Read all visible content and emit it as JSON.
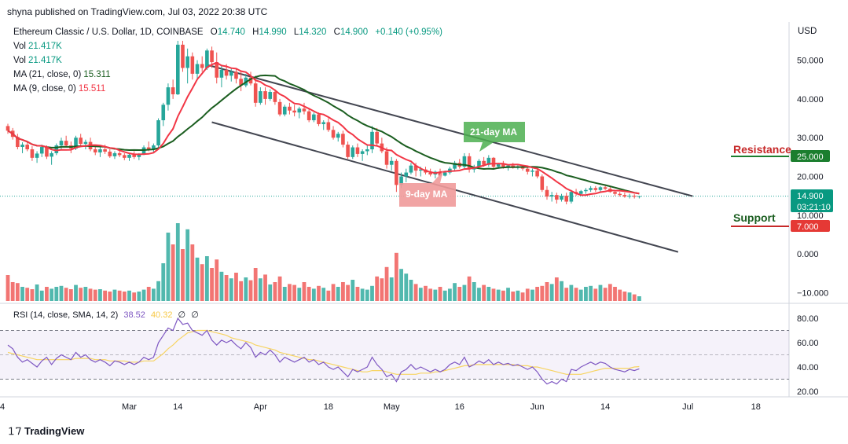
{
  "header": {
    "published": "shyna published on TradingView.com, Jul 03, 2022 20:38 UTC"
  },
  "symbol": {
    "title": "Ethereum Classic / U.S. Dollar, 1D, COINBASE",
    "o_label": "O",
    "o": "14.740",
    "h_label": "H",
    "h": "14.990",
    "l_label": "L",
    "l": "14.320",
    "c_label": "C",
    "c": "14.900",
    "change": "+0.140 (+0.95%)"
  },
  "indicators": [
    {
      "label": "Vol",
      "value": "21.417K"
    },
    {
      "label": "Vol",
      "value": "21.417K"
    },
    {
      "label": "MA (21, close, 0)",
      "value": "15.311"
    },
    {
      "label": "MA (9, close, 0)",
      "value": "15.511"
    }
  ],
  "currency": "USD",
  "annotations": {
    "ma21": "21-day MA",
    "ma9": "9-day MA",
    "resistance": "Resistance",
    "support": "Support",
    "resistance_value": "25.000",
    "support_value": "7.000",
    "price_tag": "14.900",
    "countdown": "03:21:10"
  },
  "rsi": {
    "label": "RSI (14, close, SMA, 14, 2)",
    "value1": "38.52",
    "value2": "40.32",
    "value3": "∅",
    "value4": "∅"
  },
  "brand": "TradingView",
  "colors": {
    "up": "#26a69a",
    "down": "#ef5350",
    "ma9": "#f23645",
    "ma21": "#1b5e20",
    "rsi": "#7e57c2",
    "rsi_sma": "#f7d461",
    "volume_up": "#26a69a",
    "volume_down": "#ef5350"
  },
  "chart_data": {
    "type": "candlestick",
    "price_ticks": [
      "50.000",
      "40.000",
      "30.000",
      "20.000",
      "10.000",
      "0.000",
      "−10.000"
    ],
    "price_tick_values": [
      50,
      40,
      30,
      20,
      10,
      0,
      -10
    ],
    "rsi_ticks": [
      "80.00",
      "60.00",
      "40.00",
      "20.00"
    ],
    "rsi_tick_values": [
      80,
      60,
      40,
      20
    ],
    "rsi_band": [
      30,
      70
    ],
    "x_ticks": [
      "4",
      "Mar",
      "14",
      "Apr",
      "18",
      "May",
      "16",
      "Jun",
      "14",
      "Jul",
      "18"
    ],
    "x_tick_days": [
      0,
      25,
      35,
      52,
      66,
      79,
      93,
      109,
      123,
      140,
      154
    ],
    "ohlc": [
      [
        33.0,
        33.6,
        31.0,
        31.8
      ],
      [
        31.8,
        32.5,
        29.5,
        30.2
      ],
      [
        30.2,
        31.0,
        27.0,
        27.6
      ],
      [
        27.6,
        28.8,
        26.0,
        28.2
      ],
      [
        28.2,
        29.0,
        26.5,
        27.0
      ],
      [
        27.0,
        27.8,
        24.0,
        24.8
      ],
      [
        24.8,
        26.5,
        23.5,
        25.9
      ],
      [
        25.9,
        28.2,
        25.0,
        27.6
      ],
      [
        27.6,
        28.0,
        24.5,
        25.1
      ],
      [
        25.1,
        26.5,
        23.0,
        26.0
      ],
      [
        26.0,
        28.5,
        25.5,
        28.0
      ],
      [
        28.0,
        30.0,
        27.0,
        29.2
      ],
      [
        29.2,
        30.5,
        27.5,
        28.0
      ],
      [
        28.0,
        29.0,
        26.0,
        27.2
      ],
      [
        27.2,
        30.5,
        26.8,
        30.0
      ],
      [
        30.0,
        31.0,
        27.8,
        28.4
      ],
      [
        28.4,
        29.5,
        27.0,
        28.9
      ],
      [
        28.9,
        30.0,
        26.5,
        27.0
      ],
      [
        27.0,
        28.0,
        25.5,
        26.2
      ],
      [
        26.2,
        27.5,
        25.0,
        27.0
      ],
      [
        27.0,
        28.2,
        25.8,
        26.4
      ],
      [
        26.4,
        27.0,
        24.8,
        25.2
      ],
      [
        25.2,
        26.5,
        24.5,
        26.0
      ],
      [
        26.0,
        27.2,
        25.0,
        25.5
      ],
      [
        25.5,
        26.0,
        24.2,
        24.8
      ],
      [
        24.8,
        26.0,
        24.0,
        25.6
      ],
      [
        25.6,
        26.5,
        24.5,
        25.0
      ],
      [
        25.0,
        26.0,
        24.2,
        25.8
      ],
      [
        25.8,
        28.0,
        25.5,
        27.5
      ],
      [
        27.5,
        29.0,
        26.5,
        27.0
      ],
      [
        27.0,
        28.5,
        26.0,
        28.0
      ],
      [
        28.0,
        35.0,
        27.5,
        34.5
      ],
      [
        34.5,
        39.0,
        33.0,
        38.5
      ],
      [
        38.5,
        44.0,
        37.0,
        43.0
      ],
      [
        43.0,
        45.0,
        40.0,
        41.2
      ],
      [
        41.2,
        55.0,
        41.0,
        54.0
      ],
      [
        54.0,
        55.0,
        47.0,
        48.0
      ],
      [
        48.0,
        53.0,
        44.0,
        51.0
      ],
      [
        51.0,
        52.0,
        45.0,
        46.5
      ],
      [
        46.5,
        50.0,
        45.0,
        49.0
      ],
      [
        49.0,
        51.0,
        47.0,
        48.0
      ],
      [
        48.0,
        53.0,
        47.5,
        52.5
      ],
      [
        52.5,
        53.5,
        48.0,
        49.5
      ],
      [
        49.5,
        52.0,
        44.0,
        45.5
      ],
      [
        45.5,
        48.5,
        43.0,
        47.5
      ],
      [
        47.5,
        49.0,
        45.0,
        46.0
      ],
      [
        46.0,
        48.0,
        44.5,
        47.0
      ],
      [
        47.0,
        48.0,
        44.0,
        45.2
      ],
      [
        45.2,
        47.0,
        42.0,
        43.5
      ],
      [
        43.5,
        46.5,
        43.0,
        45.5
      ],
      [
        45.5,
        47.0,
        43.5,
        44.0
      ],
      [
        44.0,
        46.0,
        38.0,
        39.0
      ],
      [
        39.0,
        43.0,
        38.5,
        42.0
      ],
      [
        42.0,
        43.0,
        38.5,
        40.0
      ],
      [
        40.0,
        42.5,
        39.5,
        41.8
      ],
      [
        41.8,
        42.5,
        38.5,
        39.2
      ],
      [
        39.2,
        40.0,
        35.5,
        36.0
      ],
      [
        36.0,
        38.5,
        35.5,
        38.0
      ],
      [
        38.0,
        39.0,
        36.0,
        37.0
      ],
      [
        37.0,
        38.5,
        35.5,
        36.5
      ],
      [
        36.5,
        38.0,
        35.0,
        37.5
      ],
      [
        37.5,
        39.0,
        36.0,
        36.8
      ],
      [
        36.8,
        37.5,
        34.0,
        34.5
      ],
      [
        34.5,
        36.5,
        34.0,
        36.0
      ],
      [
        36.0,
        36.5,
        33.0,
        33.5
      ],
      [
        33.5,
        34.5,
        32.0,
        34.0
      ],
      [
        34.0,
        35.0,
        31.5,
        32.0
      ],
      [
        32.0,
        33.0,
        29.5,
        30.0
      ],
      [
        30.0,
        31.5,
        29.0,
        31.0
      ],
      [
        31.0,
        31.8,
        27.5,
        28.2
      ],
      [
        28.2,
        29.0,
        24.5,
        25.0
      ],
      [
        25.0,
        28.0,
        24.5,
        27.5
      ],
      [
        27.5,
        28.5,
        25.0,
        25.8
      ],
      [
        25.8,
        27.0,
        24.0,
        26.5
      ],
      [
        26.5,
        28.0,
        25.5,
        27.0
      ],
      [
        27.0,
        33.0,
        26.0,
        31.5
      ],
      [
        31.5,
        32.5,
        28.0,
        28.5
      ],
      [
        28.5,
        30.0,
        26.0,
        26.5
      ],
      [
        26.5,
        27.5,
        22.0,
        23.0
      ],
      [
        23.0,
        25.0,
        21.5,
        24.0
      ],
      [
        24.0,
        24.5,
        16.0,
        17.8
      ],
      [
        17.8,
        21.0,
        17.0,
        20.0
      ],
      [
        20.0,
        22.0,
        18.5,
        21.0
      ],
      [
        21.0,
        23.5,
        20.5,
        22.8
      ],
      [
        22.8,
        23.5,
        20.0,
        21.5
      ],
      [
        21.5,
        22.5,
        20.0,
        21.8
      ],
      [
        21.8,
        22.5,
        20.5,
        21.0
      ],
      [
        21.0,
        22.0,
        20.0,
        20.5
      ],
      [
        20.5,
        21.5,
        19.5,
        21.2
      ],
      [
        21.2,
        22.0,
        20.0,
        20.2
      ],
      [
        20.2,
        21.5,
        20.0,
        21.0
      ],
      [
        21.0,
        22.5,
        20.5,
        22.0
      ],
      [
        22.0,
        24.0,
        21.5,
        23.5
      ],
      [
        23.5,
        24.5,
        22.0,
        22.5
      ],
      [
        22.5,
        26.0,
        22.0,
        25.2
      ],
      [
        25.2,
        26.0,
        21.0,
        21.8
      ],
      [
        21.8,
        23.0,
        21.0,
        22.5
      ],
      [
        22.5,
        24.5,
        22.0,
        24.0
      ],
      [
        24.0,
        25.0,
        22.5,
        23.0
      ],
      [
        23.0,
        25.5,
        22.5,
        24.8
      ],
      [
        24.8,
        25.0,
        22.0,
        22.5
      ],
      [
        22.5,
        23.5,
        22.0,
        23.2
      ],
      [
        23.2,
        24.0,
        22.0,
        22.5
      ],
      [
        22.5,
        23.0,
        21.5,
        22.8
      ],
      [
        22.8,
        23.5,
        22.0,
        22.2
      ],
      [
        22.2,
        23.0,
        21.8,
        22.6
      ],
      [
        22.6,
        23.0,
        21.5,
        22.0
      ],
      [
        22.0,
        22.5,
        20.5,
        21.2
      ],
      [
        21.2,
        22.0,
        20.0,
        21.5
      ],
      [
        21.5,
        22.0,
        19.5,
        20.0
      ],
      [
        20.0,
        20.5,
        16.0,
        16.5
      ],
      [
        16.5,
        17.5,
        14.0,
        14.8
      ],
      [
        14.8,
        16.0,
        13.5,
        15.2
      ],
      [
        15.2,
        15.8,
        13.0,
        14.0
      ],
      [
        14.0,
        15.5,
        13.5,
        15.0
      ],
      [
        15.0,
        15.8,
        12.8,
        13.5
      ],
      [
        13.5,
        16.5,
        13.0,
        16.0
      ],
      [
        16.0,
        16.8,
        15.0,
        15.5
      ],
      [
        15.5,
        16.5,
        15.0,
        16.2
      ],
      [
        16.2,
        17.0,
        15.5,
        16.5
      ],
      [
        16.5,
        17.5,
        16.0,
        17.0
      ],
      [
        17.0,
        17.5,
        16.0,
        16.5
      ],
      [
        16.5,
        17.5,
        16.0,
        17.2
      ],
      [
        17.2,
        17.8,
        16.5,
        16.8
      ],
      [
        16.8,
        17.5,
        15.8,
        16.0
      ],
      [
        16.0,
        16.5,
        15.0,
        15.5
      ],
      [
        15.5,
        16.0,
        14.8,
        15.2
      ],
      [
        15.2,
        15.8,
        14.5,
        14.8
      ],
      [
        14.8,
        15.5,
        14.3,
        15.0
      ],
      [
        15.0,
        15.4,
        14.3,
        14.76
      ],
      [
        14.74,
        14.99,
        14.32,
        14.9
      ]
    ],
    "volume_k": [
      55,
      40,
      38,
      30,
      28,
      25,
      35,
      22,
      30,
      26,
      30,
      32,
      28,
      25,
      34,
      28,
      30,
      26,
      24,
      25,
      22,
      20,
      24,
      22,
      20,
      22,
      18,
      20,
      24,
      30,
      26,
      42,
      80,
      145,
      120,
      165,
      110,
      152,
      120,
      92,
      78,
      95,
      70,
      88,
      62,
      55,
      48,
      60,
      42,
      50,
      44,
      70,
      48,
      56,
      35,
      40,
      52,
      30,
      36,
      34,
      28,
      40,
      30,
      26,
      32,
      28,
      22,
      36,
      30,
      40,
      34,
      45,
      30,
      26,
      24,
      32,
      52,
      48,
      72,
      50,
      102,
      68,
      58,
      45,
      36,
      28,
      32,
      26,
      24,
      30,
      22,
      26,
      38,
      30,
      34,
      52,
      40,
      28,
      34,
      30,
      26,
      24,
      22,
      28,
      20,
      22,
      18,
      26,
      24,
      30,
      32,
      40,
      36,
      50,
      42,
      28,
      34,
      28,
      24,
      30,
      32,
      26,
      34,
      28,
      36,
      30,
      24,
      20,
      18,
      14,
      10
    ],
    "rsi": [
      58,
      55,
      48,
      44,
      46,
      43,
      40,
      45,
      48,
      42,
      47,
      50,
      48,
      46,
      52,
      48,
      50,
      46,
      44,
      46,
      44,
      41,
      45,
      44,
      42,
      44,
      42,
      44,
      48,
      46,
      48,
      60,
      66,
      72,
      70,
      80,
      75,
      76,
      70,
      68,
      66,
      70,
      62,
      58,
      62,
      60,
      62,
      58,
      55,
      60,
      56,
      48,
      52,
      50,
      54,
      50,
      44,
      48,
      46,
      44,
      46,
      48,
      44,
      46,
      42,
      44,
      40,
      38,
      40,
      36,
      32,
      38,
      36,
      38,
      40,
      48,
      42,
      38,
      32,
      34,
      28,
      36,
      38,
      42,
      38,
      40,
      38,
      36,
      38,
      36,
      38,
      42,
      44,
      42,
      48,
      40,
      42,
      45,
      43,
      46,
      42,
      44,
      42,
      43,
      41,
      42,
      40,
      38,
      40,
      36,
      30,
      26,
      28,
      26,
      30,
      28,
      38,
      37,
      40,
      42,
      44,
      42,
      44,
      43,
      40,
      38,
      37,
      36,
      38,
      37,
      38.52
    ],
    "rsi_sma": [
      52,
      51,
      50,
      49,
      48,
      47,
      46,
      46,
      46,
      46,
      46,
      46,
      46,
      46,
      47,
      47,
      47,
      47,
      46,
      46,
      46,
      45,
      45,
      45,
      45,
      44,
      44,
      44,
      45,
      45,
      45,
      48,
      51,
      55,
      58,
      62,
      65,
      68,
      69,
      70,
      70,
      70,
      69,
      68,
      67,
      66,
      64,
      63,
      62,
      61,
      60,
      58,
      57,
      56,
      55,
      54,
      52,
      51,
      50,
      49,
      48,
      47,
      46,
      46,
      45,
      44,
      43,
      42,
      41,
      40,
      39,
      38,
      37,
      36,
      36,
      37,
      37,
      37,
      36,
      35,
      34,
      34,
      34,
      34,
      34,
      35,
      35,
      35,
      36,
      36,
      37,
      38,
      39,
      40,
      41,
      41,
      42,
      42,
      42,
      42,
      42,
      42,
      42,
      42,
      42,
      41,
      41,
      41,
      40,
      40,
      39,
      38,
      37,
      36,
      35,
      34,
      34,
      34,
      34,
      35,
      36,
      37,
      38,
      39,
      39,
      39,
      39,
      39,
      39,
      40,
      40.32
    ],
    "trendlines": [
      {
        "name": "upper",
        "from": [
          41,
          48.8
        ],
        "to": [
          141,
          14.9
        ]
      },
      {
        "name": "lower",
        "from": [
          42,
          34.0
        ],
        "to": [
          138,
          0.5
        ]
      }
    ]
  }
}
